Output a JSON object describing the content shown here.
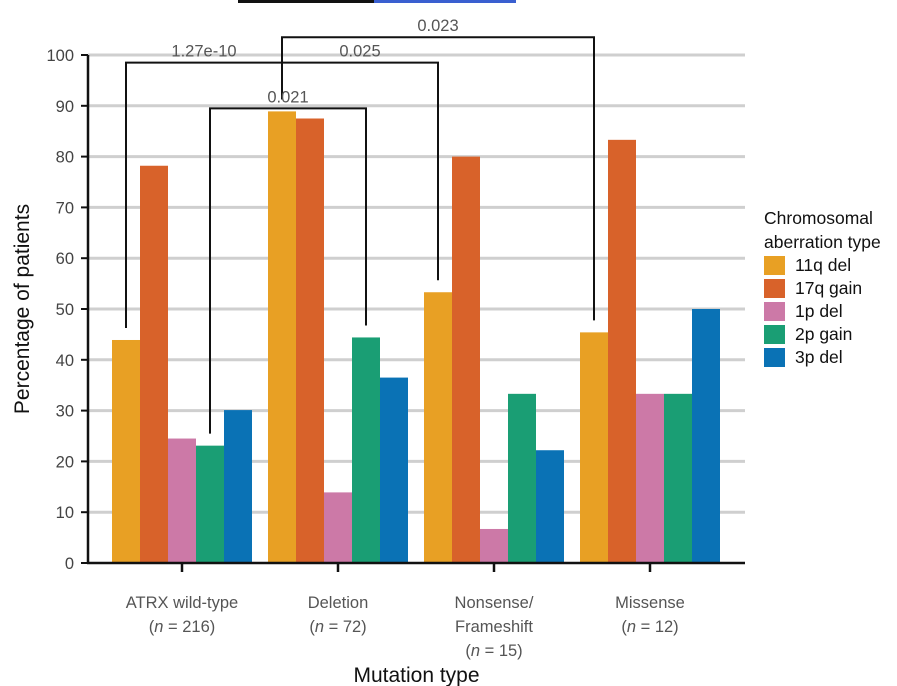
{
  "chart_data": {
    "type": "bar",
    "xlabel": "Mutation type",
    "ylabel": "Percentage of patients",
    "ylim": [
      0,
      100
    ],
    "yticks": [
      0,
      10,
      20,
      30,
      40,
      50,
      60,
      70,
      80,
      90,
      100
    ],
    "grid": true,
    "categories": [
      {
        "lines": [
          {
            "text": "ATRX wild-type"
          },
          {
            "pre": "(",
            "italic": "n",
            "post": " = 216)"
          }
        ]
      },
      {
        "lines": [
          {
            "text": "Deletion"
          },
          {
            "pre": "(",
            "italic": "n",
            "post": " = 72)"
          }
        ]
      },
      {
        "lines": [
          {
            "text": "Nonsense/"
          },
          {
            "text": "Frameshift"
          },
          {
            "pre": "(",
            "italic": "n",
            "post": " = 15)"
          }
        ]
      },
      {
        "lines": [
          {
            "text": "Missense"
          },
          {
            "pre": "(",
            "italic": "n",
            "post": " = 12)"
          }
        ]
      }
    ],
    "series": [
      {
        "name": "11q del",
        "color": "#e8a024",
        "values": [
          43.9,
          88.9,
          53.3,
          45.4
        ]
      },
      {
        "name": "17q gain",
        "color": "#d8622a",
        "values": [
          78.2,
          87.5,
          80.0,
          83.3
        ]
      },
      {
        "name": "1p del",
        "color": "#cc79a7",
        "values": [
          24.5,
          13.9,
          6.7,
          33.3
        ]
      },
      {
        "name": "2p gain",
        "color": "#1a9e74",
        "values": [
          23.1,
          44.4,
          33.3,
          33.3
        ]
      },
      {
        "name": "3p del",
        "color": "#0a72b5",
        "values": [
          30.1,
          36.5,
          22.2,
          50.0
        ]
      }
    ],
    "legend": {
      "title_lines": [
        "Chromosomal",
        "aberration type"
      ],
      "placement": "right"
    },
    "annotations": [
      {
        "label": "1.27e-10",
        "from": {
          "category": 0,
          "series": 0
        },
        "to": {
          "category": 1,
          "series": 0
        },
        "level": 98.5
      },
      {
        "label": "0.025",
        "from": {
          "category": 1,
          "series": 0
        },
        "to": {
          "category": 2,
          "series": 0
        },
        "level": 98.5
      },
      {
        "label": "0.023",
        "from": {
          "category": 1,
          "series": 0
        },
        "to": {
          "category": 3,
          "series": 0
        },
        "level": 103.5
      },
      {
        "label": "0.021",
        "from": {
          "category": 0,
          "series": 3
        },
        "to": {
          "category": 1,
          "series": 3
        },
        "level": 89.5
      }
    ]
  }
}
